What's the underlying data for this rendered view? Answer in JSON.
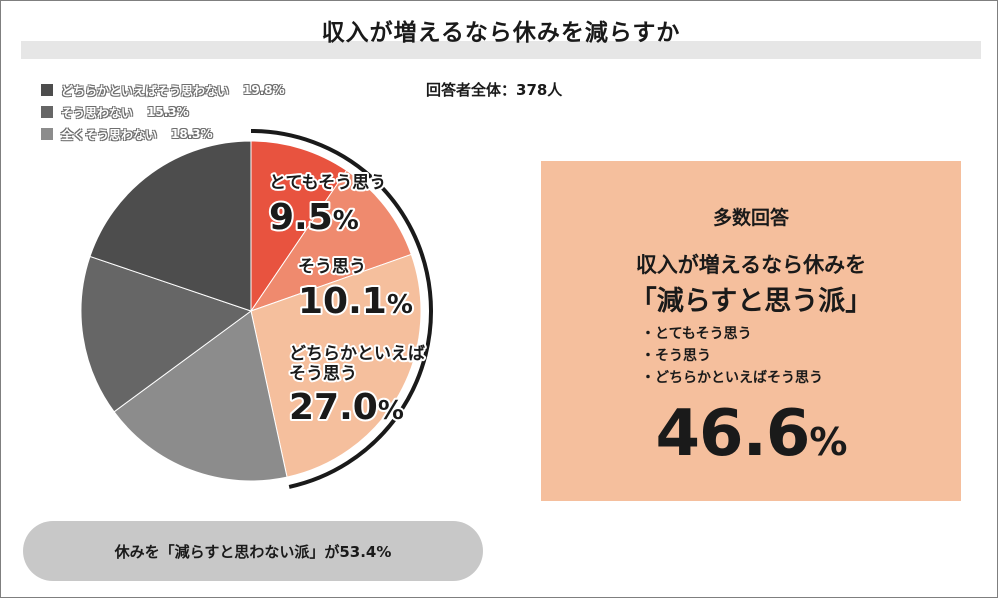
{
  "title": "収入が増えるなら休みを減らすか",
  "total_label": "回答者全体：378人",
  "legend": [
    {
      "label": "どちらかといえばそう思わない",
      "value": "19.8%",
      "color": "#4d4d4d"
    },
    {
      "label": "そう思わない",
      "value": "15.3%",
      "color": "#666666"
    },
    {
      "label": "全くそう思わない",
      "value": "18.3%",
      "color": "#8c8c8c"
    }
  ],
  "slice_labels": {
    "s1": {
      "name": "とてもそう思う",
      "pct": "9.5",
      "unit": "%"
    },
    "s2": {
      "name": "そう思う",
      "pct": "10.1",
      "unit": "%"
    },
    "s3": {
      "name_line1": "どちらかといえば",
      "name_line2": "そう思う",
      "pct": "27.0",
      "unit": "%"
    }
  },
  "panel": {
    "heading": "多数回答",
    "line1": "収入が増えるなら休みを",
    "line2": "「減らすと思う派」",
    "items": [
      "・とてもそう思う",
      "・そう思う",
      "・どちらかといえばそう思う"
    ],
    "pct_number": "46.6",
    "pct_unit": "%"
  },
  "footer": "休みを「減らすと思わない派」が53.4%",
  "chart_data": {
    "type": "pie",
    "title": "収入が増えるなら休みを減らすか",
    "slices": [
      {
        "label": "とてもそう思う",
        "value": 9.5,
        "color": "#e8533f"
      },
      {
        "label": "そう思う",
        "value": 10.1,
        "color": "#ef8a6e"
      },
      {
        "label": "どちらかといえばそう思う",
        "value": 27.0,
        "color": "#f5bf9d"
      },
      {
        "label": "全くそう思わない",
        "value": 18.3,
        "color": "#8c8c8c"
      },
      {
        "label": "そう思わない",
        "value": 15.3,
        "color": "#666666"
      },
      {
        "label": "どちらかといえばそう思わない",
        "value": 19.8,
        "color": "#4d4d4d"
      }
    ],
    "start": "12 o'clock",
    "direction": "clockwise",
    "highlight_group": {
      "label": "減らすと思う派",
      "value": 46.6
    },
    "other_group": {
      "label": "減らすと思わない派",
      "value": 53.4
    }
  }
}
